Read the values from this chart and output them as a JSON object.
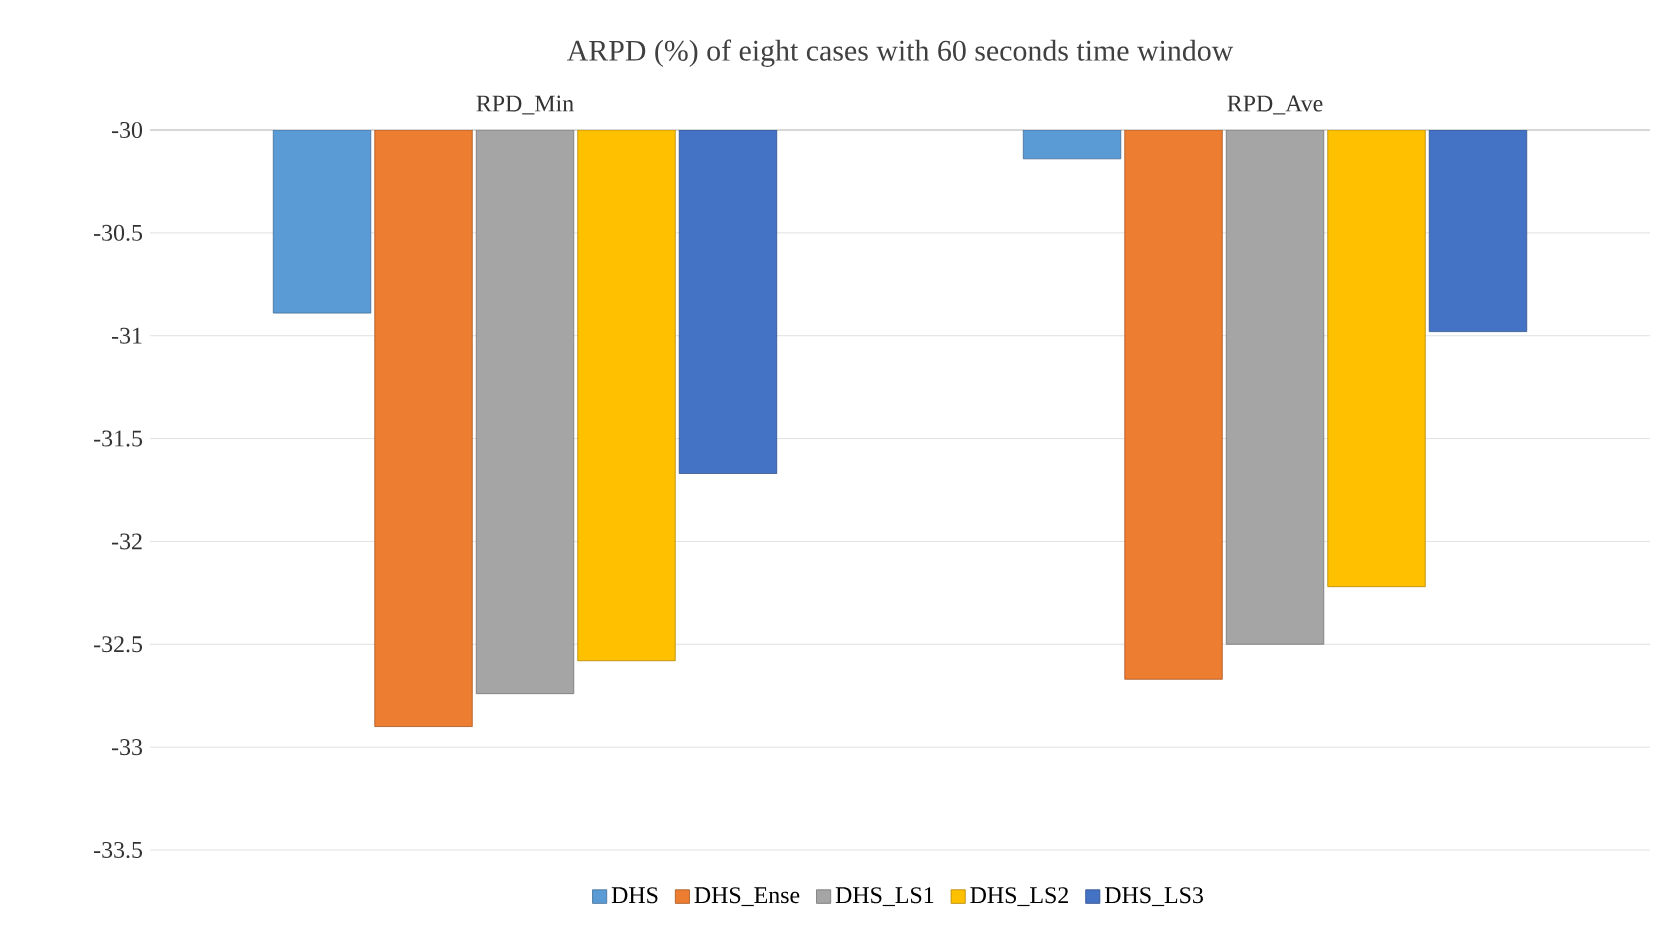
{
  "chart_data": {
    "type": "bar",
    "title": "ARPD (%) of eight cases with 60 seconds time window",
    "categories": [
      "RPD_Min",
      "RPD_Ave"
    ],
    "series": [
      {
        "name": "DHS",
        "color": "#5b9bd5",
        "values": [
          -30.89,
          -30.14
        ]
      },
      {
        "name": "DHS_Ense",
        "color": "#ed7d31",
        "values": [
          -32.9,
          -32.67
        ]
      },
      {
        "name": "DHS_LS1",
        "color": "#a5a5a5",
        "values": [
          -32.74,
          -32.5
        ]
      },
      {
        "name": "DHS_LS2",
        "color": "#ffc000",
        "values": [
          -32.58,
          -32.22
        ]
      },
      {
        "name": "DHS_LS3",
        "color": "#4472c4",
        "values": [
          -31.67,
          -30.98
        ]
      }
    ],
    "ylim": [
      -33.5,
      -30
    ],
    "yticks": [
      -30,
      -30.5,
      -31,
      -31.5,
      -32,
      -32.5,
      -33,
      -33.5
    ],
    "grid": "y",
    "legend": "bottom"
  }
}
